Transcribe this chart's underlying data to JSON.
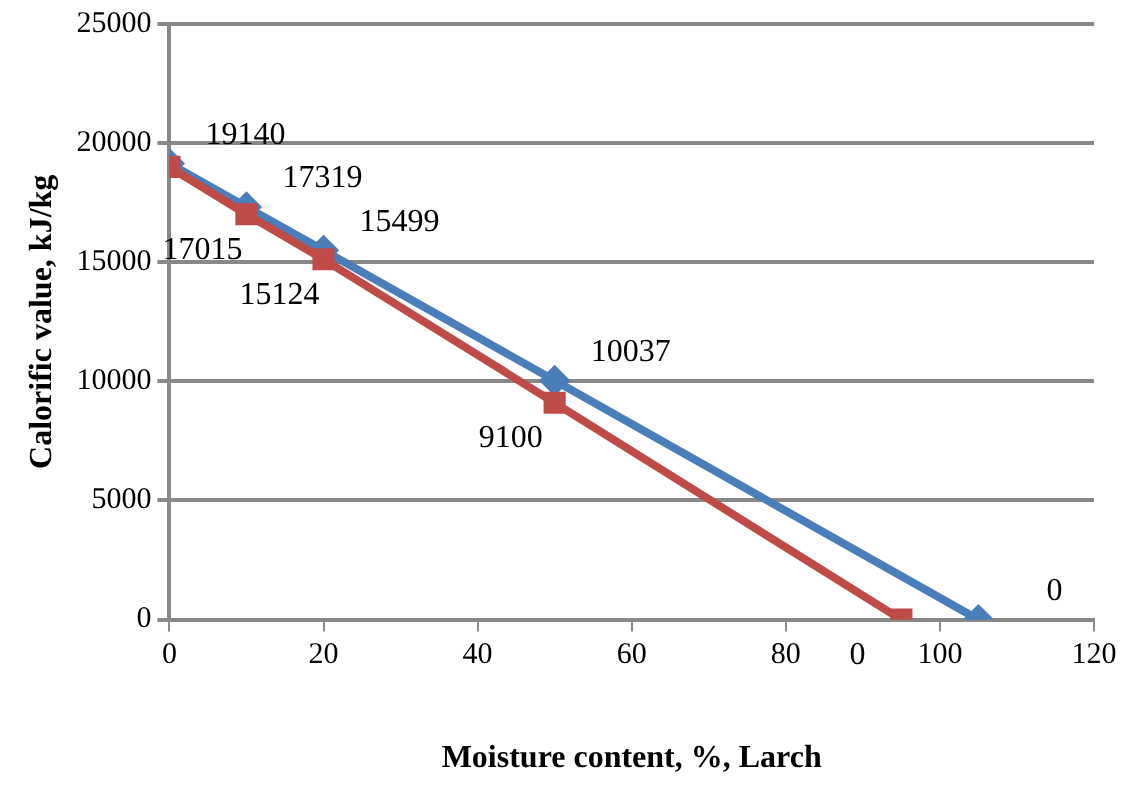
{
  "chart_data": {
    "type": "line",
    "xlabel": "Moisture content, %, Larch",
    "ylabel": "Calorific value, kJ/kg",
    "xlim": [
      0,
      120
    ],
    "xticks": [
      0,
      20,
      40,
      60,
      80,
      100,
      120
    ],
    "ylim": [
      0,
      25000
    ],
    "yticks": [
      0,
      5000,
      10000,
      15000,
      20000,
      25000
    ],
    "grid": "y",
    "legend": false,
    "line_style": "solid",
    "series": [
      {
        "color": "#4a7ebb",
        "marker": "diamond",
        "x": [
          0,
          10,
          20,
          50,
          105
        ],
        "values": [
          19140,
          17319,
          15499,
          10037,
          0
        ],
        "value_labels": [
          "19140",
          "17319",
          "15499",
          "10037",
          "0"
        ]
      },
      {
        "color": "#be4b48",
        "marker": "square",
        "x": [
          0,
          10,
          20,
          50,
          95
        ],
        "values": [
          19000,
          17015,
          15124,
          9100,
          0
        ],
        "value_labels": [
          null,
          "17015",
          "15124",
          "9100",
          "0"
        ]
      }
    ]
  }
}
